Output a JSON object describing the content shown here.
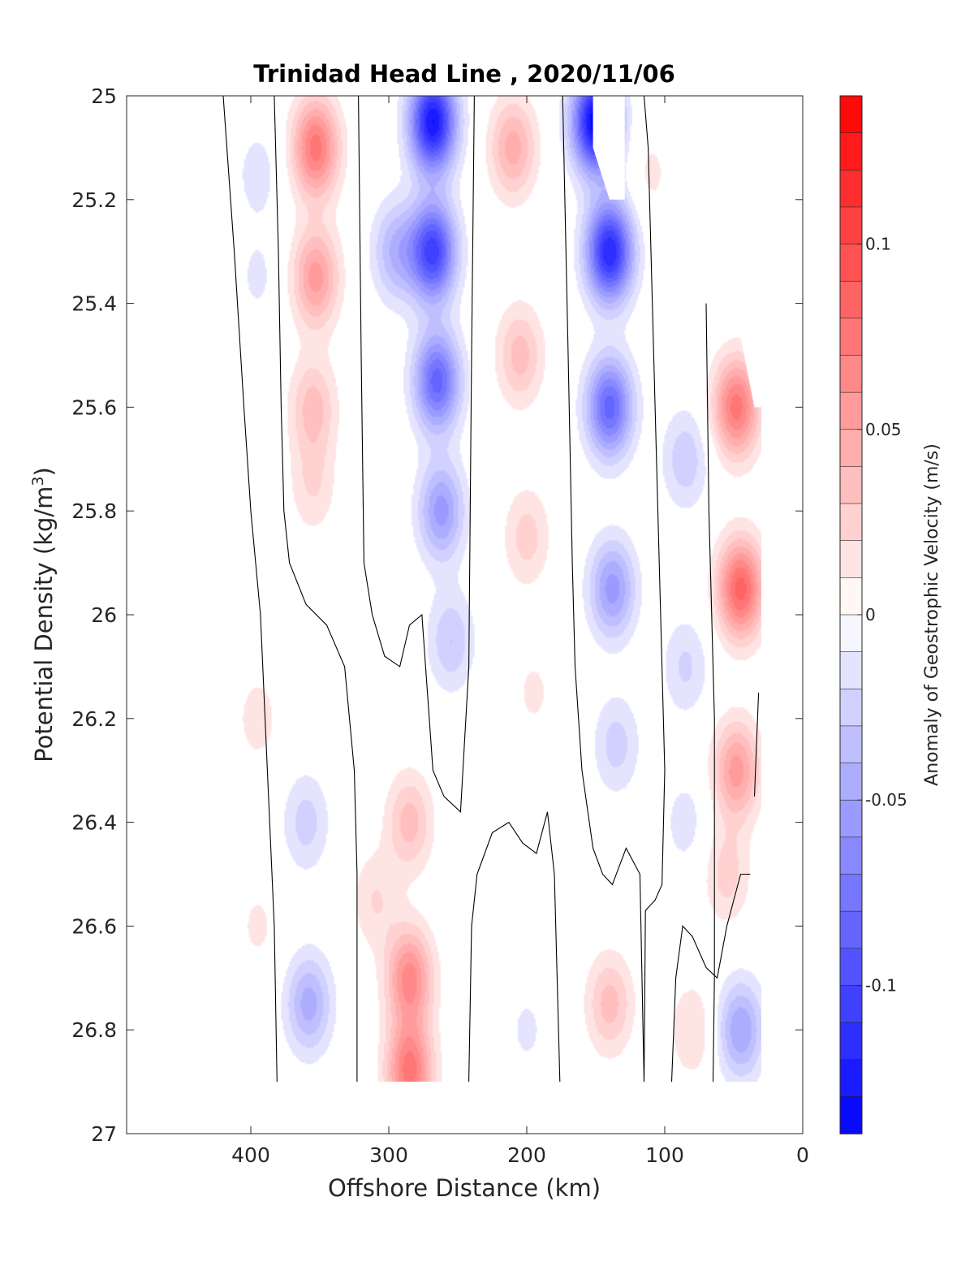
{
  "chart_data": {
    "type": "heatmap",
    "subtype": "filled-contour",
    "title": "Trinidad Head Line , 2020/11/06",
    "xlabel": "Offshore Distance (km)",
    "ylabel_main": "Potential Density (kg/m",
    "ylabel_sup": "3",
    "ylabel_close": ")",
    "colorbar_label": "Anomaly of Geostrophic Velocity (m/s)",
    "xlim": [
      490,
      0
    ],
    "x_reversed": true,
    "ylim": [
      25,
      27
    ],
    "y_reversed": true,
    "x_ticks": [
      400,
      300,
      200,
      100,
      0
    ],
    "x_tick_labels": [
      "400",
      "300",
      "200",
      "100",
      "0"
    ],
    "y_ticks": [
      25,
      25.2,
      25.4,
      25.6,
      25.8,
      26,
      26.2,
      26.4,
      26.6,
      26.8,
      27
    ],
    "y_tick_labels": [
      "25",
      "25.2",
      "25.4",
      "25.6",
      "25.8",
      "26",
      "26.2",
      "26.4",
      "26.6",
      "26.8",
      "27"
    ],
    "clim": [
      -0.14,
      0.14
    ],
    "colorbar_ticks": [
      0.1,
      0.05,
      0,
      -0.05,
      -0.1
    ],
    "colorbar_tick_labels": [
      "0.1",
      "0.05",
      "0",
      "-0.05",
      "-0.1"
    ],
    "levels": 28,
    "colormap": {
      "negative": "#0000ff",
      "zero": "#ffffff",
      "positive": "#ff0000"
    },
    "grid": false,
    "anomalies": [
      {
        "x": 395,
        "y": 25.15,
        "v": -0.015
      },
      {
        "x": 395,
        "y": 25.35,
        "v": -0.012
      },
      {
        "x": 353,
        "y": 25.1,
        "v": 0.075
      },
      {
        "x": 353,
        "y": 25.35,
        "v": 0.055
      },
      {
        "x": 355,
        "y": 25.6,
        "v": 0.035
      },
      {
        "x": 355,
        "y": 25.75,
        "v": 0.02
      },
      {
        "x": 268,
        "y": 25.05,
        "v": -0.13
      },
      {
        "x": 268,
        "y": 25.3,
        "v": -0.105
      },
      {
        "x": 265,
        "y": 25.55,
        "v": -0.085
      },
      {
        "x": 262,
        "y": 25.8,
        "v": -0.055
      },
      {
        "x": 255,
        "y": 26.05,
        "v": -0.03
      },
      {
        "x": 295,
        "y": 25.3,
        "v": -0.04
      },
      {
        "x": 210,
        "y": 25.1,
        "v": 0.045
      },
      {
        "x": 205,
        "y": 25.5,
        "v": 0.035
      },
      {
        "x": 200,
        "y": 25.85,
        "v": 0.025
      },
      {
        "x": 195,
        "y": 26.15,
        "v": 0.012
      },
      {
        "x": 150,
        "y": 25.05,
        "v": -0.14
      },
      {
        "x": 140,
        "y": 25.3,
        "v": -0.12
      },
      {
        "x": 140,
        "y": 25.6,
        "v": -0.085
      },
      {
        "x": 138,
        "y": 25.95,
        "v": -0.055
      },
      {
        "x": 135,
        "y": 26.25,
        "v": -0.025
      },
      {
        "x": 110,
        "y": 25.15,
        "v": 0.012
      },
      {
        "x": 85,
        "y": 25.7,
        "v": -0.028
      },
      {
        "x": 85,
        "y": 26.1,
        "v": -0.022
      },
      {
        "x": 85,
        "y": 26.4,
        "v": -0.015
      },
      {
        "x": 48,
        "y": 25.6,
        "v": 0.075
      },
      {
        "x": 45,
        "y": 25.95,
        "v": 0.085
      },
      {
        "x": 48,
        "y": 26.3,
        "v": 0.055
      },
      {
        "x": 55,
        "y": 26.5,
        "v": 0.025
      },
      {
        "x": 395,
        "y": 26.2,
        "v": 0.015
      },
      {
        "x": 395,
        "y": 26.6,
        "v": 0.012
      },
      {
        "x": 360,
        "y": 26.4,
        "v": -0.025
      },
      {
        "x": 358,
        "y": 26.75,
        "v": -0.045
      },
      {
        "x": 285,
        "y": 26.4,
        "v": 0.035
      },
      {
        "x": 285,
        "y": 26.7,
        "v": 0.065
      },
      {
        "x": 285,
        "y": 26.88,
        "v": 0.075
      },
      {
        "x": 200,
        "y": 26.8,
        "v": -0.012
      },
      {
        "x": 140,
        "y": 26.75,
        "v": 0.035
      },
      {
        "x": 80,
        "y": 26.8,
        "v": 0.02
      },
      {
        "x": 45,
        "y": 26.8,
        "v": -0.05
      },
      {
        "x": 310,
        "y": 26.55,
        "v": 0.02
      },
      {
        "x": 240,
        "y": 26.3,
        "v": -0.005
      }
    ],
    "masks": [
      {
        "kind": "above",
        "points": [
          [
            420,
            25
          ],
          [
            420,
            26.9
          ]
        ]
      },
      {
        "kind": "shape",
        "points": [
          [
            152,
            25
          ],
          [
            152,
            25.1
          ],
          [
            140,
            25.2
          ],
          [
            129,
            25.2
          ],
          [
            129,
            25
          ],
          [
            152,
            25
          ]
        ]
      },
      {
        "kind": "shape",
        "points": [
          [
            0,
            25
          ],
          [
            102,
            25
          ],
          [
            102,
            25.4
          ],
          [
            50,
            25.4
          ],
          [
            35,
            25.6
          ],
          [
            30,
            25.6
          ],
          [
            30,
            27
          ],
          [
            0,
            27
          ]
        ]
      }
    ],
    "zero_contours": [
      [
        [
          420,
          25
        ],
        [
          412,
          25.3
        ],
        [
          405,
          25.6
        ],
        [
          400,
          25.8
        ],
        [
          393,
          26
        ],
        [
          388,
          26.3
        ],
        [
          383,
          26.6
        ],
        [
          381,
          26.9
        ]
      ],
      [
        [
          383,
          25
        ],
        [
          380,
          25.3
        ],
        [
          378,
          25.6
        ],
        [
          376,
          25.8
        ],
        [
          372,
          25.9
        ],
        [
          360,
          25.98
        ],
        [
          345,
          26.02
        ],
        [
          332,
          26.1
        ],
        [
          325,
          26.3
        ],
        [
          323,
          26.5
        ],
        [
          323,
          26.9
        ]
      ],
      [
        [
          322,
          25
        ],
        [
          320,
          25.5
        ],
        [
          318,
          25.9
        ],
        [
          312,
          26
        ],
        [
          303,
          26.08
        ],
        [
          292,
          26.1
        ],
        [
          285,
          26.02
        ],
        [
          276,
          26
        ],
        [
          268,
          26.3
        ],
        [
          260,
          26.35
        ],
        [
          248,
          26.38
        ],
        [
          242,
          26.1
        ],
        [
          240,
          25.5
        ],
        [
          238,
          25
        ]
      ],
      [
        [
          242,
          26.9
        ],
        [
          240,
          26.6
        ],
        [
          236,
          26.5
        ],
        [
          225,
          26.42
        ],
        [
          213,
          26.4
        ],
        [
          203,
          26.44
        ],
        [
          193,
          26.46
        ],
        [
          185,
          26.38
        ],
        [
          180,
          26.5
        ],
        [
          176,
          26.9
        ]
      ],
      [
        [
          174,
          25
        ],
        [
          170,
          25.5
        ],
        [
          167,
          25.9
        ],
        [
          165,
          26.1
        ],
        [
          160,
          26.3
        ],
        [
          152,
          26.45
        ],
        [
          145,
          26.5
        ],
        [
          138,
          26.52
        ],
        [
          128,
          26.45
        ],
        [
          118,
          26.5
        ],
        [
          115,
          26.9
        ]
      ],
      [
        [
          115,
          26.9
        ],
        [
          114,
          26.57
        ],
        [
          107,
          26.55
        ],
        [
          102,
          26.52
        ],
        [
          100,
          26.3
        ],
        [
          103,
          26
        ],
        [
          108,
          25.5
        ],
        [
          112,
          25.1
        ],
        [
          115,
          25
        ]
      ],
      [
        [
          95,
          26.9
        ],
        [
          92,
          26.7
        ],
        [
          87,
          26.6
        ],
        [
          80,
          26.62
        ],
        [
          70,
          26.68
        ],
        [
          62,
          26.7
        ],
        [
          55,
          26.6
        ],
        [
          45,
          26.5
        ],
        [
          38,
          26.5
        ]
      ],
      [
        [
          65,
          26.9
        ],
        [
          64,
          26.7
        ],
        [
          64,
          26.2
        ],
        [
          68,
          25.8
        ],
        [
          70,
          25.4
        ]
      ],
      [
        [
          35,
          26.35
        ],
        [
          32,
          26.15
        ]
      ]
    ]
  }
}
